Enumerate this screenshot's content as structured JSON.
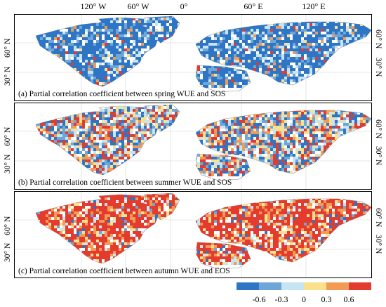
{
  "map": {
    "longitude_labels": [
      "120° W",
      "60° W",
      "0°",
      "60° E",
      "120° E"
    ],
    "latitude_labels": [
      "60° N",
      "30° N"
    ],
    "panels": [
      {
        "id": "a",
        "caption": "(a) Partial correlation coefficient between spring WUE and SOS",
        "dominant": "negative"
      },
      {
        "id": "b",
        "caption": "(b) Partial correlation coefficient between summer WUE and SOS",
        "dominant": "mixed"
      },
      {
        "id": "c",
        "caption": "(c) Partial correlation coefficient between autumn WUE and EOS",
        "dominant": "positive"
      }
    ]
  },
  "legend": {
    "colors": [
      "#2e75c6",
      "#6fa6d8",
      "#c6e4f2",
      "#fbe18e",
      "#f29b55",
      "#e33b2e"
    ],
    "tick_labels": [
      "-0.6",
      "-0.3",
      "0",
      "0.3",
      "0.6"
    ]
  }
}
